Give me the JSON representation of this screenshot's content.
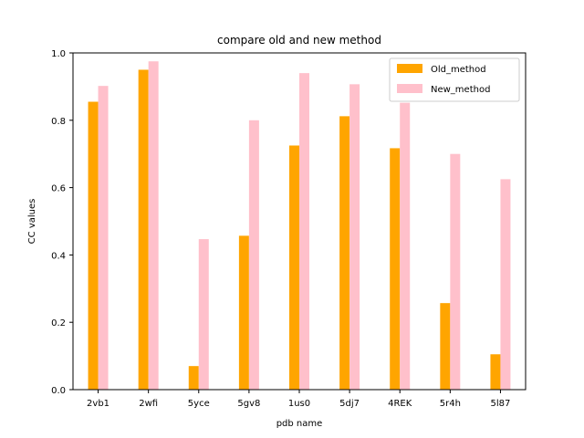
{
  "chart_data": {
    "type": "bar",
    "title": "compare old and new method",
    "xlabel": "pdb name",
    "ylabel": "CC values",
    "categories": [
      "2vb1",
      "2wfi",
      "5yce",
      "5gv8",
      "1us0",
      "5dj7",
      "4REK",
      "5r4h",
      "5l87"
    ],
    "series": [
      {
        "name": "Old_method",
        "color": "#ffa500",
        "values": [
          0.855,
          0.95,
          0.07,
          0.457,
          0.725,
          0.812,
          0.717,
          0.257,
          0.105
        ]
      },
      {
        "name": "New_method",
        "color": "#ffc0cb",
        "values": [
          0.902,
          0.975,
          0.447,
          0.8,
          0.94,
          0.907,
          0.852,
          0.7,
          0.625
        ]
      }
    ],
    "ylim": [
      0,
      1.0
    ],
    "yticks": [
      "0.0",
      "0.2",
      "0.4",
      "0.6",
      "0.8",
      "1.0"
    ],
    "grid": false,
    "legend": "top-right"
  }
}
